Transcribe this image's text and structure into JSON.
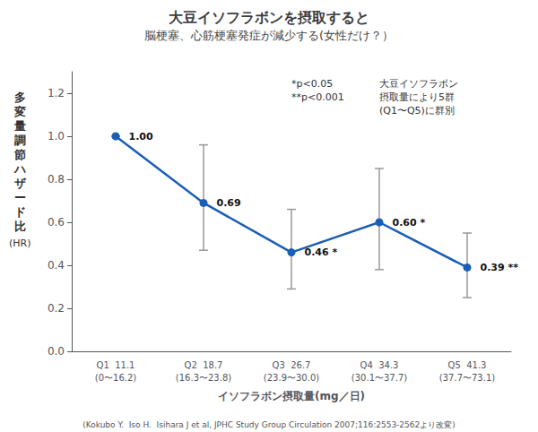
{
  "chart_data": {
    "type": "line",
    "title": "大豆イソフラボンを摂取すると",
    "subtitle": "脳梗塞、心筋梗塞発症が減少する(女性だけ？）",
    "xlabel": "イソフラボン摂取量(mg／日)",
    "ylabel": "多変量調節ハザード比",
    "ylabel_unit": "(HR)",
    "categories": [
      "Q1  11.1\n(0〜16.2)",
      "Q2  18.7\n(16.3〜23.8)",
      "Q3  26.7\n(23.9〜30.0)",
      "Q4  34.3\n(30.1〜37.7)",
      "Q5  41.3\n(37.7〜73.1)"
    ],
    "values": [
      1.0,
      0.69,
      0.46,
      0.6,
      0.39
    ],
    "value_labels": [
      "1.00",
      "0.69",
      "0.46",
      "0.60",
      "0.39"
    ],
    "significance": [
      null,
      null,
      "*",
      "*",
      "**"
    ],
    "error_low": [
      0.0,
      0.22,
      0.17,
      0.22,
      0.14
    ],
    "error_high": [
      0.0,
      0.27,
      0.2,
      0.25,
      0.16
    ],
    "color": "#1b5eb5",
    "marker": "circle",
    "data_labels": true,
    "grid": false,
    "ylim": [
      0.0,
      1.3
    ],
    "yticks": [
      {
        "value": 0.0,
        "label": "0.0"
      },
      0.2,
      0.4,
      0.6,
      0.8,
      {
        "value": 1.0,
        "label": "1.0"
      },
      1.2
    ],
    "annotations": [
      [
        "*p<0.05",
        "**p<0.001"
      ],
      [
        "大豆イソフラボン",
        "摂取量により5群",
        "(Q1〜Q5)に群別"
      ]
    ],
    "source": "(Kokubo Y.  Iso H.  Isihara J et al, JPHC Study Group Circulation 2007;116:2553-2562より改変)"
  }
}
